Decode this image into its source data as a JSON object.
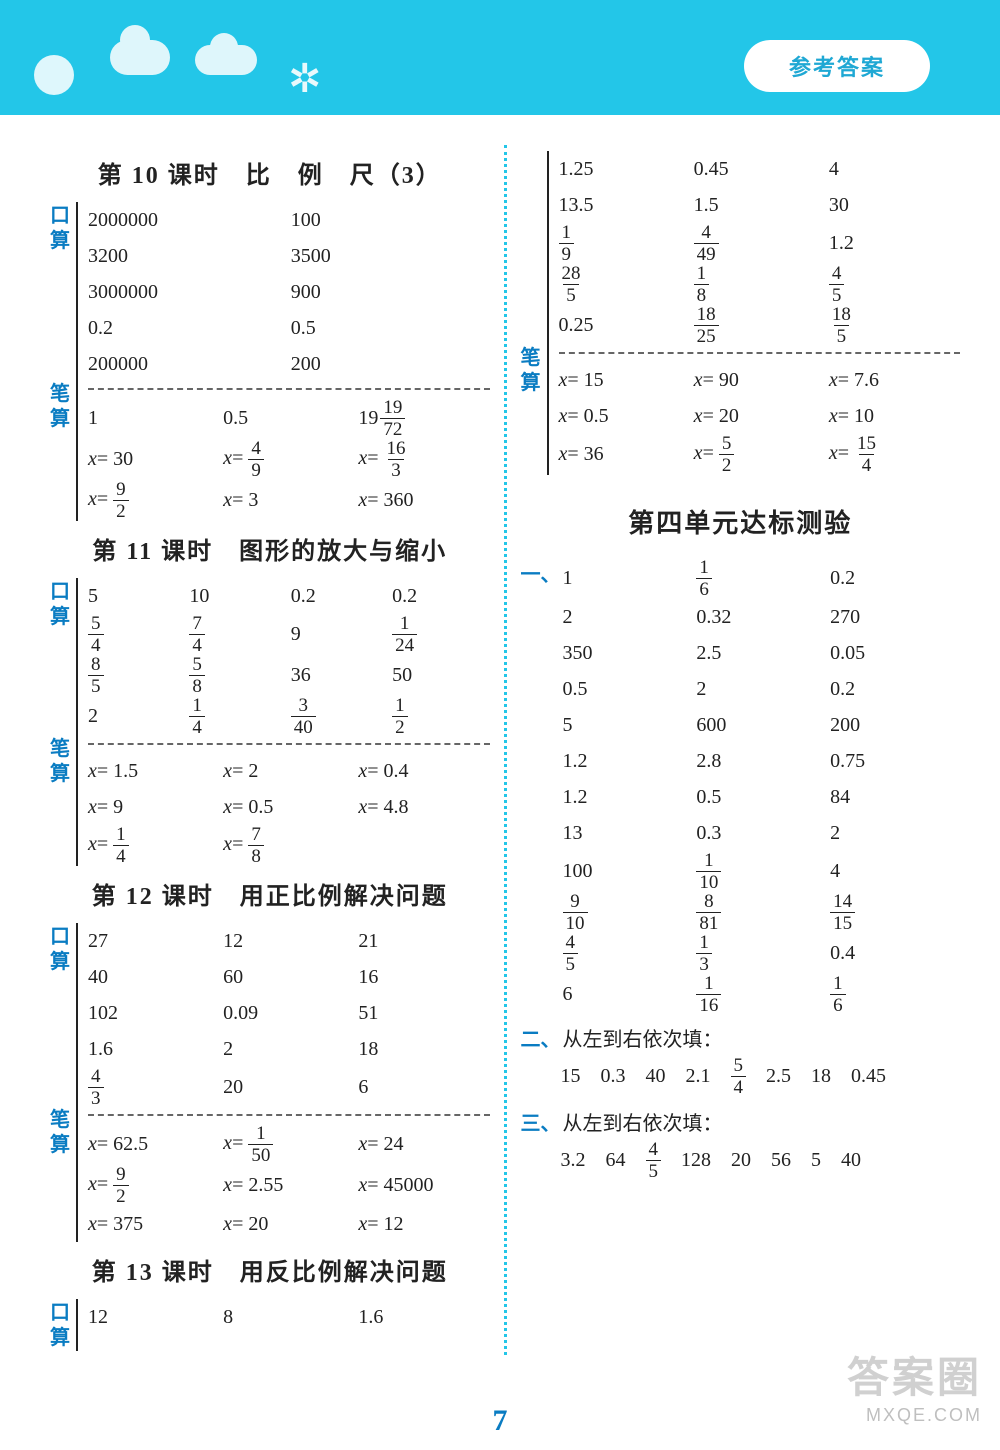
{
  "colors": {
    "header_bg": "#23c6e8",
    "accent": "#0a7cc2",
    "text": "#222222",
    "bg": "#ffffff",
    "dash": "#666666"
  },
  "typography": {
    "base_font": "SimSun / Microsoft YaHei",
    "base_size_pt": 15,
    "heading_size_pt": 18
  },
  "header": {
    "pill": "参考答案"
  },
  "page_number": "7",
  "watermark": {
    "line1": "答案圈",
    "line2": "MXQE.COM"
  },
  "tags": {
    "kousuan": "口算",
    "bisuan": "笔算"
  },
  "left": {
    "s10": {
      "title": "第 10 课时　比　例　尺（3）",
      "ks": [
        [
          "2000000",
          "100"
        ],
        [
          "3200",
          "3500"
        ],
        [
          "3000000",
          "900"
        ],
        [
          "0.2",
          "0.5"
        ],
        [
          "200000",
          "200"
        ]
      ],
      "bs_r1": [
        "1",
        "0.5",
        {
          "mix": [
            "19",
            "19",
            "72"
          ]
        }
      ],
      "bs_r2": [
        {
          "eq": "30"
        },
        {
          "eqf": [
            "4",
            "9"
          ]
        },
        {
          "eqf": [
            "16",
            "3"
          ]
        }
      ],
      "bs_r3": [
        {
          "eqf": [
            "9",
            "2"
          ]
        },
        {
          "eq": "3"
        },
        {
          "eq": "360"
        }
      ]
    },
    "s11": {
      "title": "第 11 课时　图形的放大与缩小",
      "ks": [
        [
          "5",
          "10",
          "0.2",
          "0.2"
        ],
        [
          {
            "f": [
              "5",
              "4"
            ]
          },
          {
            "f": [
              "7",
              "4"
            ]
          },
          "9",
          {
            "f": [
              "1",
              "24"
            ]
          }
        ],
        [
          {
            "f": [
              "8",
              "5"
            ]
          },
          {
            "f": [
              "5",
              "8"
            ]
          },
          "36",
          "50"
        ],
        [
          "2",
          {
            "f": [
              "1",
              "4"
            ]
          },
          {
            "f": [
              "3",
              "40"
            ]
          },
          {
            "f": [
              "1",
              "2"
            ]
          }
        ]
      ],
      "bs": [
        [
          {
            "eq": "1.5"
          },
          {
            "eq": "2"
          },
          {
            "eq": "0.4"
          }
        ],
        [
          {
            "eq": "9"
          },
          {
            "eq": "0.5"
          },
          {
            "eq": "4.8"
          }
        ],
        [
          {
            "eqf": [
              "1",
              "4"
            ]
          },
          {
            "eqf": [
              "7",
              "8"
            ]
          },
          ""
        ]
      ]
    },
    "s12": {
      "title": "第 12 课时　用正比例解决问题",
      "ks": [
        [
          "27",
          "12",
          "21"
        ],
        [
          "40",
          "60",
          "16"
        ],
        [
          "102",
          "0.09",
          "51"
        ],
        [
          "1.6",
          "2",
          "18"
        ],
        [
          {
            "f": [
              "4",
              "3"
            ]
          },
          "20",
          "6"
        ]
      ],
      "bs": [
        [
          {
            "eq": "62.5"
          },
          {
            "eqf": [
              "1",
              "50"
            ]
          },
          {
            "eq": "24"
          }
        ],
        [
          {
            "eqf": [
              "9",
              "2"
            ]
          },
          {
            "eq": "2.55"
          },
          {
            "eq": "45000"
          }
        ],
        [
          {
            "eq": "375"
          },
          {
            "eq": "20"
          },
          {
            "eq": "12"
          }
        ]
      ]
    },
    "s13": {
      "title": "第 13 课时　用反比例解决问题",
      "ks": [
        [
          "12",
          "8",
          "1.6"
        ]
      ]
    }
  },
  "right": {
    "cont_ks": [
      [
        "1.25",
        "0.45",
        "4"
      ],
      [
        "13.5",
        "1.5",
        "30"
      ],
      [
        {
          "f": [
            "1",
            "9"
          ]
        },
        {
          "f": [
            "4",
            "49"
          ]
        },
        "1.2"
      ],
      [
        {
          "f": [
            "28",
            "5"
          ]
        },
        {
          "f": [
            "1",
            "8"
          ]
        },
        {
          "f": [
            "4",
            "5"
          ]
        }
      ],
      [
        "0.25",
        {
          "f": [
            "18",
            "25"
          ]
        },
        {
          "f": [
            "18",
            "5"
          ]
        }
      ]
    ],
    "cont_bs": [
      [
        {
          "eq": "15"
        },
        {
          "eq": "90"
        },
        {
          "eq": "7.6"
        }
      ],
      [
        {
          "eq": "0.5"
        },
        {
          "eq": "20"
        },
        {
          "eq": "10"
        }
      ],
      [
        {
          "eq": "36"
        },
        {
          "eqf": [
            "5",
            "2"
          ]
        },
        {
          "eqf": [
            "15",
            "4"
          ]
        }
      ]
    ],
    "unit_title": "第四单元达标测验",
    "q1_label": "一、",
    "q1": [
      [
        "1",
        {
          "f": [
            "1",
            "6"
          ]
        },
        "0.2"
      ],
      [
        "2",
        "0.32",
        "270"
      ],
      [
        "350",
        "2.5",
        "0.05"
      ],
      [
        "0.5",
        "2",
        "0.2"
      ],
      [
        "5",
        "600",
        "200"
      ],
      [
        "1.2",
        "2.8",
        "0.75"
      ],
      [
        "1.2",
        "0.5",
        "84"
      ],
      [
        "13",
        "0.3",
        "2"
      ],
      [
        "100",
        {
          "f": [
            "1",
            "10"
          ]
        },
        "4"
      ],
      [
        {
          "f": [
            "9",
            "10"
          ]
        },
        {
          "f": [
            "8",
            "81"
          ]
        },
        {
          "f": [
            "14",
            "15"
          ]
        }
      ],
      [
        {
          "f": [
            "4",
            "5"
          ]
        },
        {
          "f": [
            "1",
            "3"
          ]
        },
        "0.4"
      ],
      [
        "6",
        {
          "f": [
            "1",
            "16"
          ]
        },
        {
          "f": [
            "1",
            "6"
          ]
        }
      ]
    ],
    "q2_label": "二、",
    "q2_head": "从左到右依次填：",
    "q2_vals": [
      "15",
      "0.3",
      "40",
      "2.1",
      {
        "f": [
          "5",
          "4"
        ]
      },
      "2.5",
      "18",
      "0.45"
    ],
    "q3_label": "三、",
    "q3_head": "从左到右依次填：",
    "q3_vals": [
      "3.2",
      "64",
      {
        "f": [
          "4",
          "5"
        ]
      },
      "128",
      "20",
      "56",
      "5",
      "40"
    ]
  }
}
